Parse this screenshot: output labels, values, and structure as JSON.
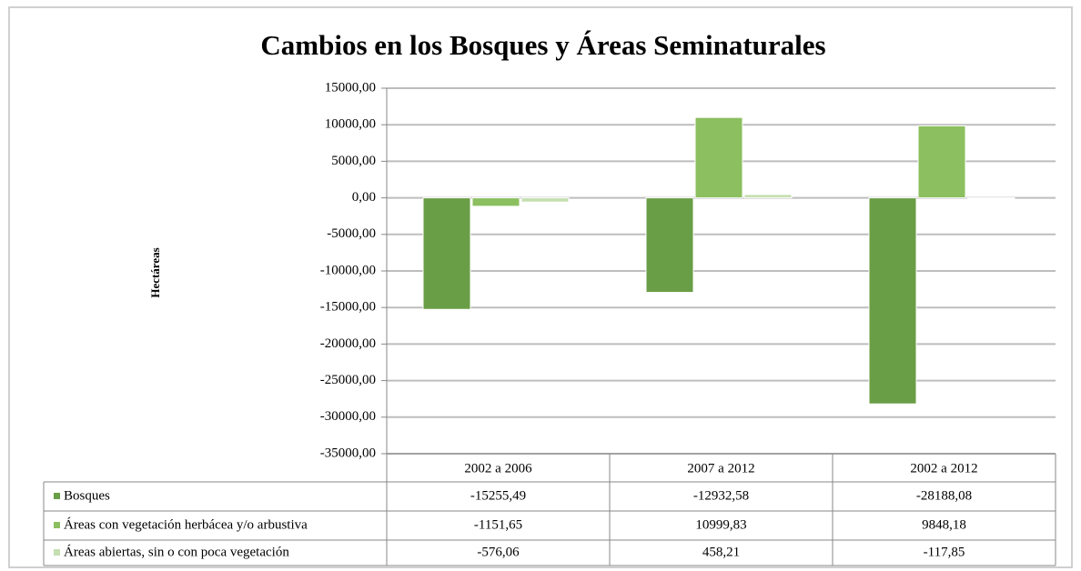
{
  "chart_data": {
    "type": "bar",
    "title": "Cambios en los Bosques y Áreas Seminaturales",
    "y_label": "Hectáreas",
    "categories": [
      "2002 a 2006",
      "2007 a 2012",
      "2002 a 2012"
    ],
    "series": [
      {
        "name": "Bosques",
        "color": "#6a9e46",
        "values": [
          -15255.49,
          -12932.58,
          -28188.08
        ],
        "value_labels": [
          "-15255,49",
          "-12932,58",
          "-28188,08"
        ]
      },
      {
        "name": "Áreas con vegetación herbácea y/o  arbustiva",
        "color": "#8cbf5f",
        "values": [
          -1151.65,
          10999.83,
          9848.18
        ],
        "value_labels": [
          "-1151,65",
          "10999,83",
          "9848,18"
        ]
      },
      {
        "name": "Áreas abiertas, sin o con poca vegetación",
        "color": "#c5dfb0",
        "values": [
          -576.06,
          458.21,
          -117.85
        ],
        "value_labels": [
          "-576,06",
          "458,21",
          "-117,85"
        ]
      }
    ],
    "ylim": [
      -35000,
      15000
    ],
    "yticks": [
      {
        "value": 15000,
        "label": "15000,00"
      },
      {
        "value": 10000,
        "label": "10000,00"
      },
      {
        "value": 5000,
        "label": "5000,00"
      },
      {
        "value": 0,
        "label": "0,00"
      },
      {
        "value": -5000,
        "label": "-5000,00"
      },
      {
        "value": -10000,
        "label": "-10000,00"
      },
      {
        "value": -15000,
        "label": "-15000,00"
      },
      {
        "value": -20000,
        "label": "-20000,00"
      },
      {
        "value": -25000,
        "label": "-25000,00"
      },
      {
        "value": -30000,
        "label": "-30000,00"
      },
      {
        "value": -35000,
        "label": "-35000,00"
      }
    ],
    "grid": true
  }
}
